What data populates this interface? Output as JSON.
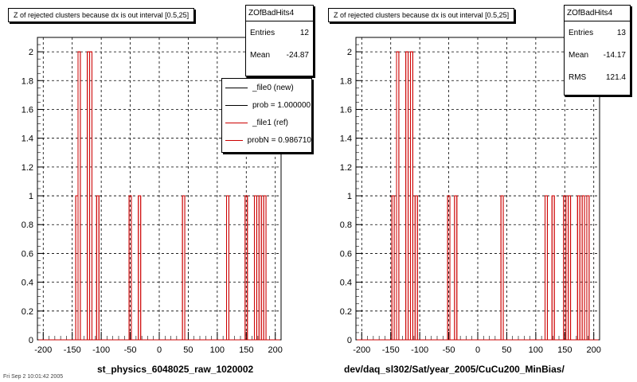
{
  "panels": [
    {
      "title": "Z of rejected clusters  because dx is out interval  [0.5,25]",
      "xlabel": "st_physics_6048025_raw_1020002",
      "stats": {
        "name": "ZOfBadHits4",
        "rows": [
          {
            "label": "Entries",
            "value": "12"
          },
          {
            "label": "Mean",
            "value": "-24.87"
          }
        ]
      },
      "legend": [
        {
          "label": "_file0 (new)",
          "color": "#000000"
        },
        {
          "label": "prob = 1.000000",
          "color": "#000000"
        },
        {
          "label": "_file1 (ref)",
          "color": "#cc0000"
        },
        {
          "label": "probN = 0.986710",
          "color": "#cc0000"
        }
      ]
    },
    {
      "title": "Z of rejected clusters  because dx is out interval  [0.5,25]",
      "xlabel": "dev/daq_sl302/Sat/year_2005/CuCu200_MinBias/",
      "stats": {
        "name": "ZOfBadHits4",
        "rows": [
          {
            "label": "Entries",
            "value": "13"
          },
          {
            "label": "Mean",
            "value": "-14.17"
          },
          {
            "label": "RMS",
            "value": "121.4"
          }
        ]
      },
      "legend": []
    }
  ],
  "footer_text": "Fri Sep  2 10:01:42 2005",
  "chart_data": [
    {
      "type": "bar",
      "style": "step-histogram",
      "xlim": [
        -210,
        210
      ],
      "ylim": [
        0,
        2.1
      ],
      "xticks": [
        "-200",
        "-150",
        "-100",
        "-50",
        "0",
        "50",
        "100",
        "150",
        "200"
      ],
      "yticks": [
        "0",
        "0.2",
        "0.4",
        "0.6",
        "0.8",
        "1",
        "1.2",
        "1.4",
        "1.6",
        "1.8",
        "2"
      ],
      "grid": true,
      "bin_width": 4,
      "series": [
        {
          "color": "#cc0000",
          "bins": [
            {
              "x": -144,
              "y": 1
            },
            {
              "x": -140,
              "y": 2
            },
            {
              "x": -124,
              "y": 2
            },
            {
              "x": -120,
              "y": 2
            },
            {
              "x": -108,
              "y": 1
            },
            {
              "x": -52,
              "y": 1
            },
            {
              "x": -36,
              "y": 1
            },
            {
              "x": 40,
              "y": 1
            },
            {
              "x": 116,
              "y": 1
            },
            {
              "x": 148,
              "y": 1
            },
            {
              "x": 164,
              "y": 1
            },
            {
              "x": 172,
              "y": 1
            },
            {
              "x": 180,
              "y": 1
            }
          ]
        }
      ]
    },
    {
      "type": "bar",
      "style": "step-histogram",
      "xlim": [
        -210,
        210
      ],
      "ylim": [
        0,
        2.1
      ],
      "xticks": [
        "-200",
        "-150",
        "-100",
        "-50",
        "0",
        "50",
        "100",
        "150",
        "200"
      ],
      "yticks": [
        "0",
        "0.2",
        "0.4",
        "0.6",
        "0.8",
        "1",
        "1.2",
        "1.4",
        "1.6",
        "1.8",
        "2"
      ],
      "grid": true,
      "bin_width": 4,
      "series": [
        {
          "color": "#cc0000",
          "bins": [
            {
              "x": -148,
              "y": 1
            },
            {
              "x": -140,
              "y": 2
            },
            {
              "x": -124,
              "y": 2
            },
            {
              "x": -116,
              "y": 2
            },
            {
              "x": -108,
              "y": 1
            },
            {
              "x": -52,
              "y": 1
            },
            {
              "x": -40,
              "y": 1
            },
            {
              "x": 40,
              "y": 1
            },
            {
              "x": 116,
              "y": 1
            },
            {
              "x": 128,
              "y": 1
            },
            {
              "x": 148,
              "y": 1
            },
            {
              "x": 156,
              "y": 1
            },
            {
              "x": 172,
              "y": 1
            },
            {
              "x": 180,
              "y": 1
            },
            {
              "x": 188,
              "y": 1
            }
          ]
        }
      ]
    }
  ]
}
